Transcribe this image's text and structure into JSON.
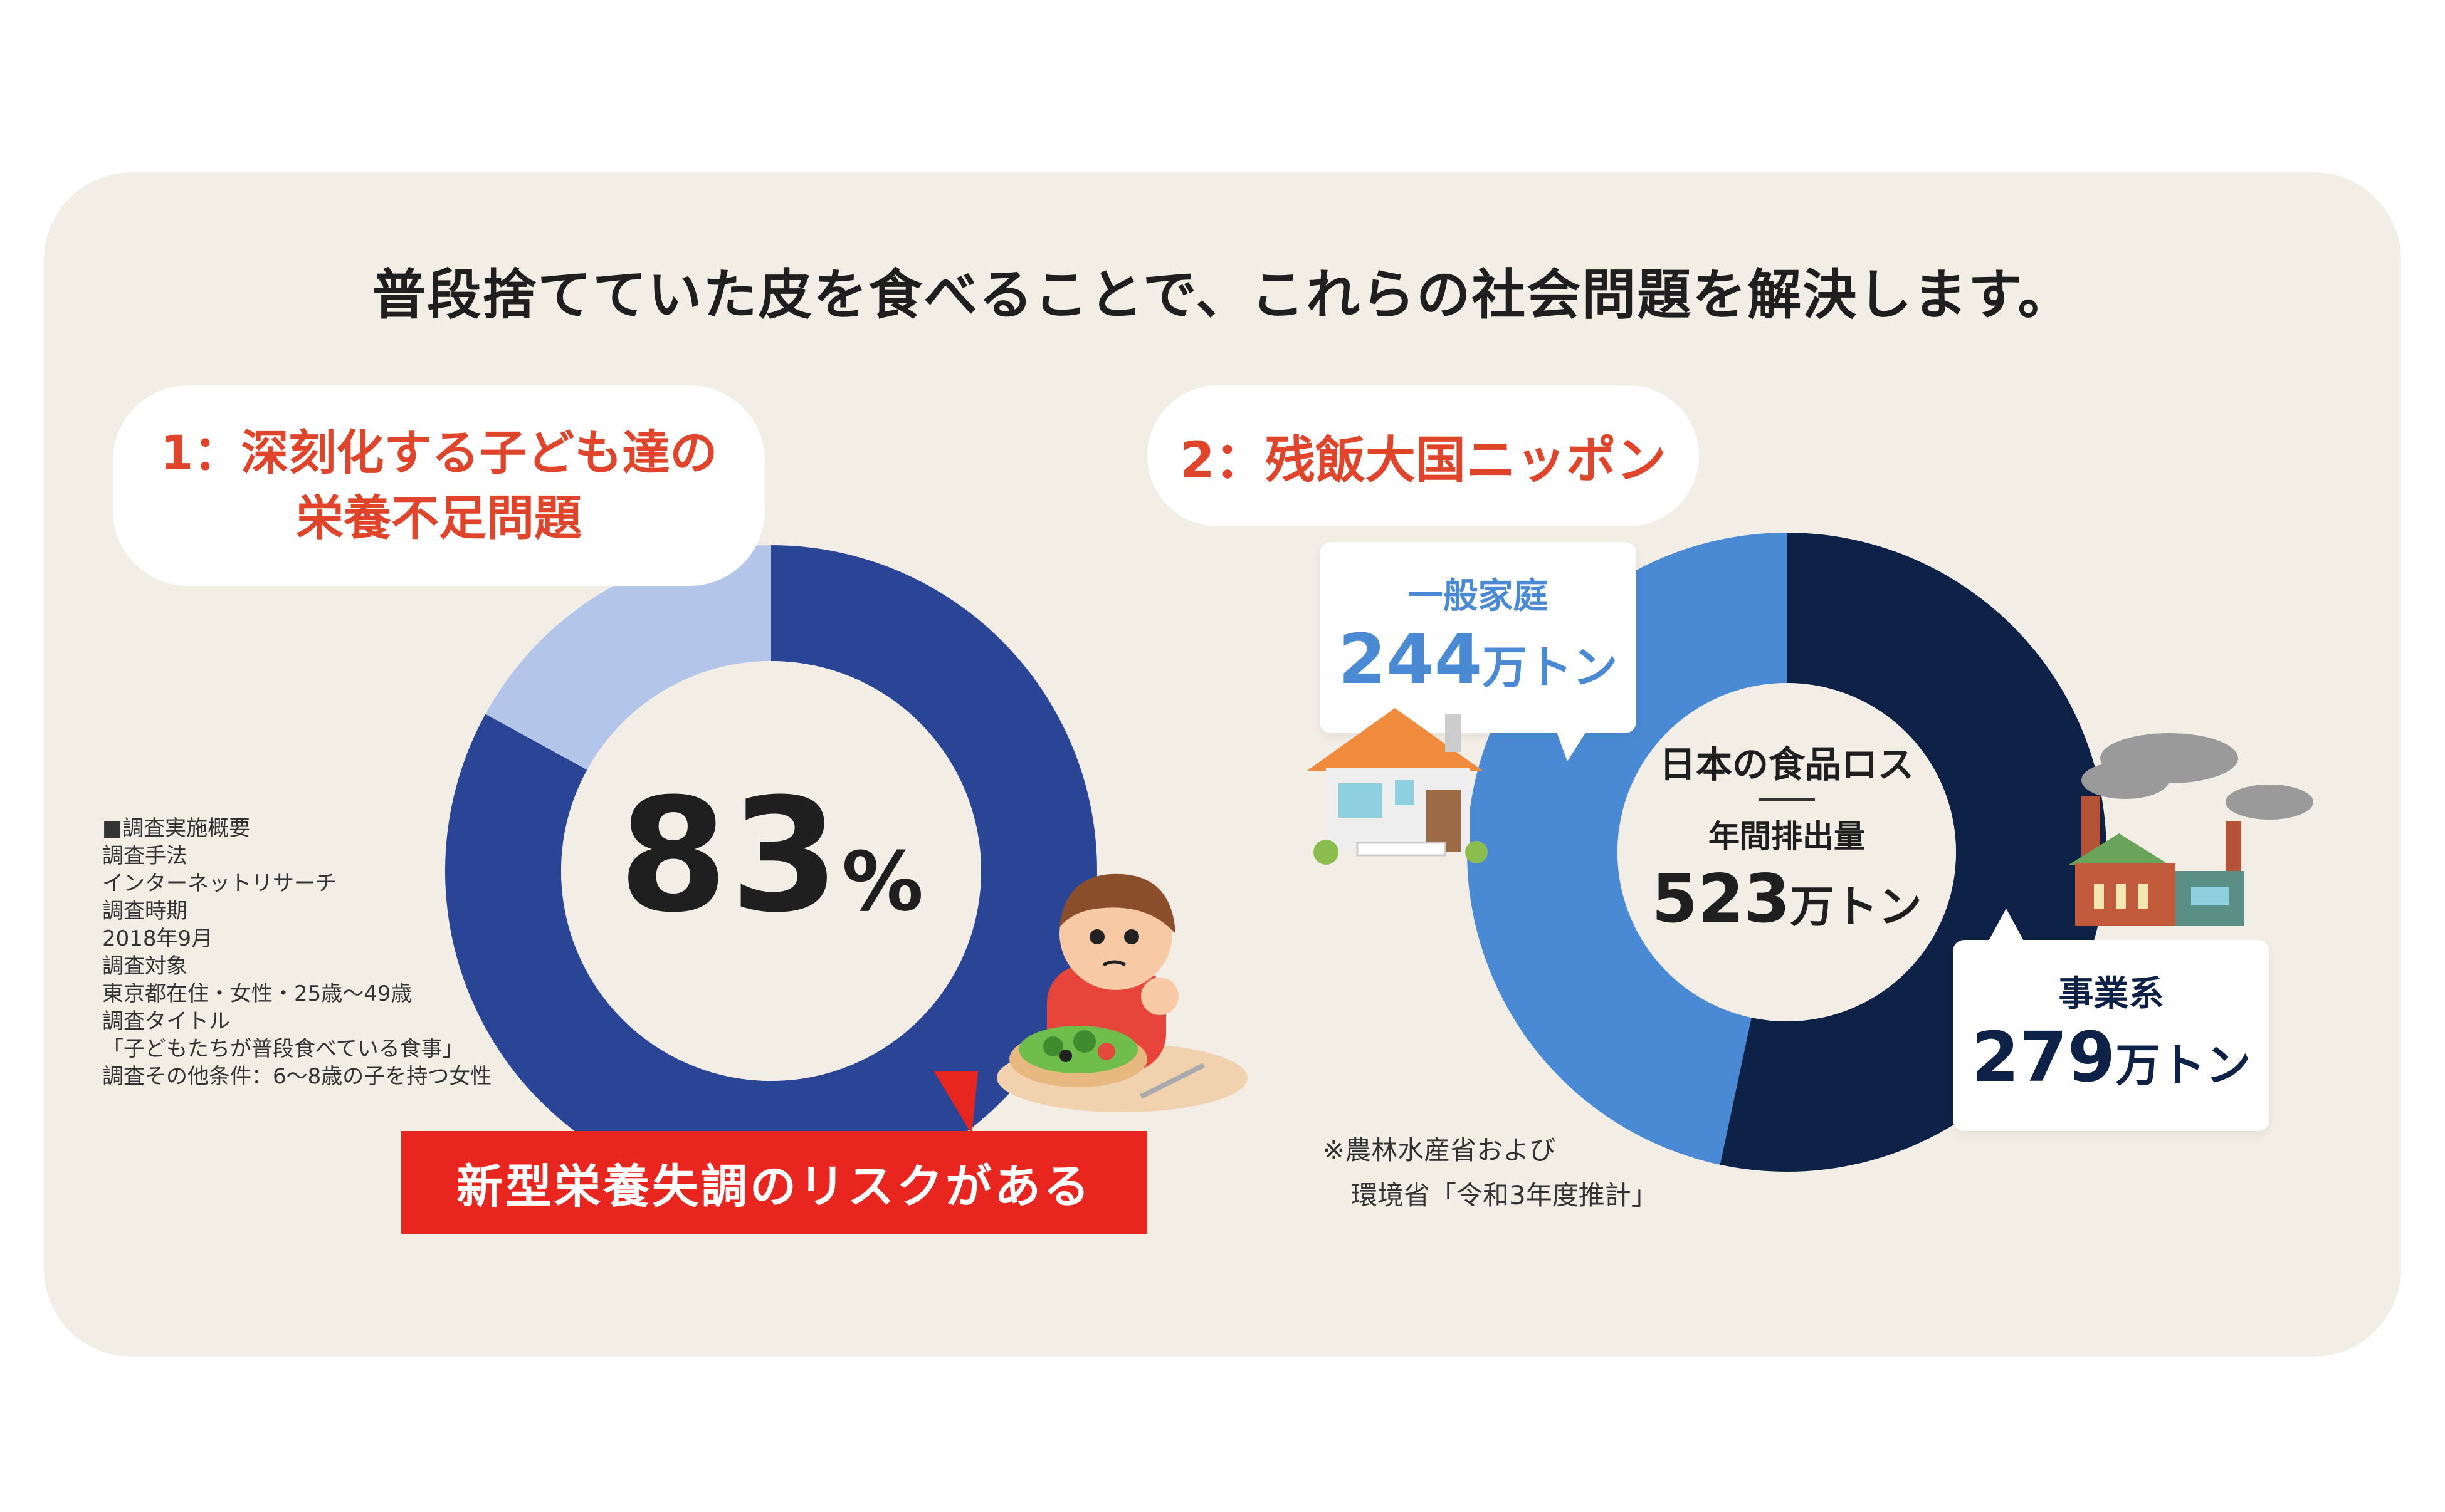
{
  "headline": "普段捨てていた皮を食べることで、これらの社会問題を解決します。",
  "section1": {
    "title_line1": "1：深刻化する子ども達の",
    "title_line2": "栄養不足問題",
    "percent_value": "83",
    "percent_unit": "%",
    "banner": "新型栄養失調のリスクがある",
    "survey_lines": [
      "■調査実施概要",
      "調査手法",
      "インターネットリサーチ",
      "調査時期",
      "2018年9月",
      "調査対象",
      "東京都在住・女性・25歳〜49歳",
      "調査タイトル",
      "「子どもたちが普段食べている食事」",
      "調査その他条件：6〜8歳の子を持つ女性"
    ]
  },
  "section2": {
    "title": "2：残飯大国ニッポン",
    "center_line1": "日本の食品ロス",
    "center_line2": "年間排出量",
    "center_value": "523",
    "unit": "万トン",
    "household_label": "一般家庭",
    "household_value": "244",
    "business_label": "事業系",
    "business_value": "279",
    "note_line1": "※農林水産省および",
    "note_line2": "環境省「令和3年度推計」"
  },
  "chart_data": [
    {
      "type": "pie",
      "categories": [
        "",
        ""
      ],
      "values": [
        83,
        17
      ],
      "colors": [
        "#2b4596",
        "#b3c6ea"
      ]
    },
    {
      "type": "pie",
      "categories": [
        "事業系",
        "一般家庭"
      ],
      "values": [
        279,
        244
      ],
      "colors": [
        "#0e2247",
        "#4a8ad4"
      ]
    }
  ],
  "colors": {
    "panel": "#f2eee6",
    "accent_red": "#e8251f",
    "title_red": "#e0442a"
  }
}
